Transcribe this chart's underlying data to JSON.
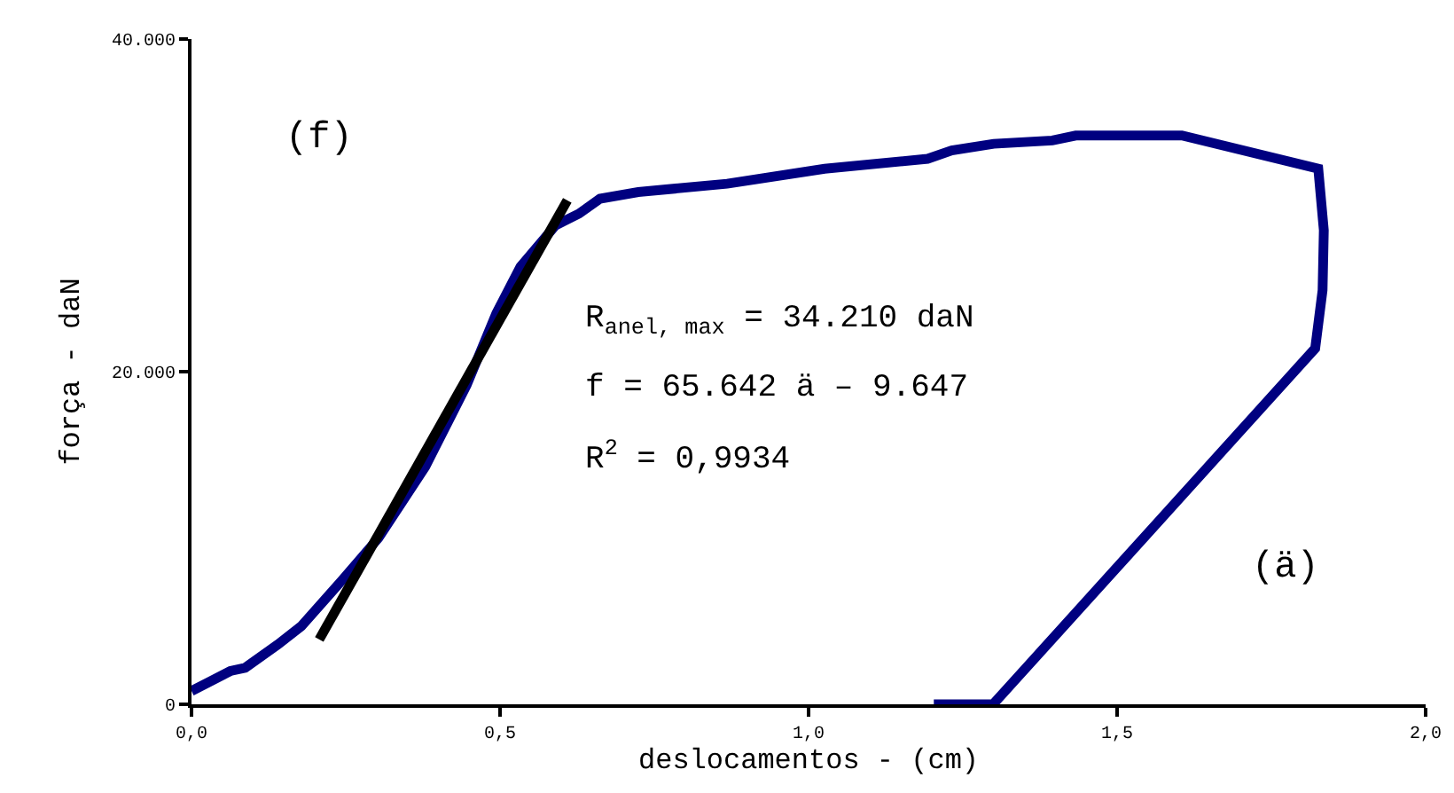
{
  "chart_data": {
    "type": "line",
    "xlabel": "deslocamentos - (cm)",
    "ylabel": "força - daN",
    "x": [
      0,
      0.063,
      0.087,
      0.14,
      0.178,
      0.245,
      0.303,
      0.379,
      0.446,
      0.494,
      0.533,
      0.59,
      0.628,
      0.662,
      0.724,
      0.868,
      1.026,
      1.193,
      1.232,
      1.3,
      1.395,
      1.433,
      1.605,
      1.826,
      1.835,
      1.833,
      1.821,
      1.299,
      1.203
    ],
    "series": [
      {
        "color": "#000080",
        "values": [
          800,
          2000,
          2200,
          3600,
          4700,
          7500,
          10000,
          14300,
          19200,
          23500,
          26300,
          28800,
          29500,
          30400,
          30800,
          31300,
          32200,
          32800,
          33300,
          33700,
          33900,
          34200,
          34200,
          32200,
          28500,
          24900,
          21400,
          0,
          0
        ]
      },
      {
        "color": "#000000",
        "x": [
          0.207,
          0.609
        ],
        "values": [
          3900,
          30300
        ]
      }
    ],
    "xlim": [
      0,
      2
    ],
    "xticks": [
      {
        "value": 0,
        "label": "0,0"
      },
      {
        "value": 0.5,
        "label": "0,5"
      },
      {
        "value": 1,
        "label": "1,0"
      },
      {
        "value": 1.5,
        "label": "1,5"
      },
      {
        "value": 2,
        "label": "2,0"
      }
    ],
    "ylim": [
      0,
      40000
    ],
    "yticks": [
      0,
      {
        "value": 20000,
        "label": "20.000"
      },
      {
        "value": 40000,
        "label": "40.000"
      }
    ],
    "annotations": [
      "(f)",
      "R$_{anel, max}$ = 34.210 daN",
      "f = 65.642 ä – 9.647",
      "R$^{2}$ = 0,9934",
      "(ä)"
    ],
    "grid": false,
    "marker": "none",
    "line_style": "solid"
  }
}
